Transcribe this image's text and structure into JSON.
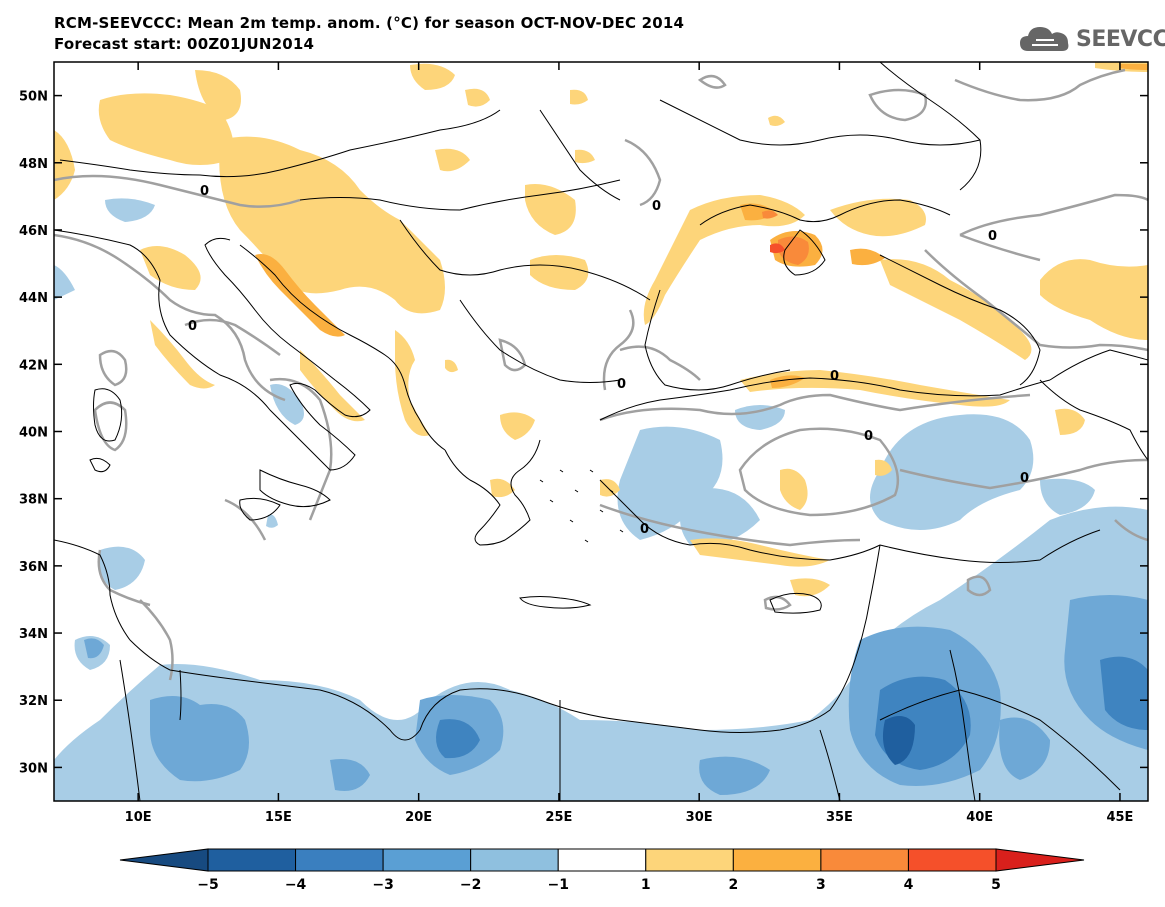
{
  "header": {
    "title": "RCM-SEEVCCC: Mean 2m temp. anom. (°C) for season OCT-NOV-DEC 2014",
    "subtitle": "Forecast start: 00Z01JUN2014",
    "logo_text": "SEEVCCC"
  },
  "map": {
    "lon_range": [
      7,
      46
    ],
    "lat_range": [
      29,
      51
    ],
    "lat_ticks": [
      {
        "value": 50,
        "label": "50N"
      },
      {
        "value": 48,
        "label": "48N"
      },
      {
        "value": 46,
        "label": "46N"
      },
      {
        "value": 44,
        "label": "44N"
      },
      {
        "value": 42,
        "label": "42N"
      },
      {
        "value": 40,
        "label": "40N"
      },
      {
        "value": 38,
        "label": "38N"
      },
      {
        "value": 36,
        "label": "36N"
      },
      {
        "value": 34,
        "label": "34N"
      },
      {
        "value": 32,
        "label": "32N"
      },
      {
        "value": 30,
        "label": "30N"
      }
    ],
    "lon_ticks": [
      {
        "value": 10,
        "label": "10E"
      },
      {
        "value": 15,
        "label": "15E"
      },
      {
        "value": 20,
        "label": "20E"
      },
      {
        "value": 25,
        "label": "25E"
      },
      {
        "value": 30,
        "label": "30E"
      },
      {
        "value": 35,
        "label": "35E"
      },
      {
        "value": 40,
        "label": "40E"
      },
      {
        "value": 45,
        "label": "45E"
      }
    ],
    "contour_label": "0"
  },
  "colorbar": {
    "bins": [
      {
        "color": "#1f5f9f"
      },
      {
        "color": "#3a7fbf"
      },
      {
        "color": "#5a9fd4"
      },
      {
        "color": "#8fc0df"
      },
      {
        "color": "#ffffff"
      },
      {
        "color": "#fdd57a"
      },
      {
        "color": "#fbb040"
      },
      {
        "color": "#f98a3a"
      },
      {
        "color": "#f5502a"
      }
    ],
    "low_end_color": "#174a80",
    "high_end_color": "#d9201c",
    "labels": [
      "−5",
      "−4",
      "−3",
      "−2",
      "−1",
      "1",
      "2",
      "3",
      "4",
      "5"
    ]
  },
  "colors": {
    "blue_1": "#a8cde6",
    "blue_2": "#6ea8d6",
    "blue_3": "#3f84c0",
    "blue_4": "#1f5f9f",
    "orange_1": "#fdd57a",
    "orange_2": "#fbb040",
    "orange_3": "#f98a3a",
    "orange_4": "#f5502a",
    "contour": "#a0a0a0"
  }
}
